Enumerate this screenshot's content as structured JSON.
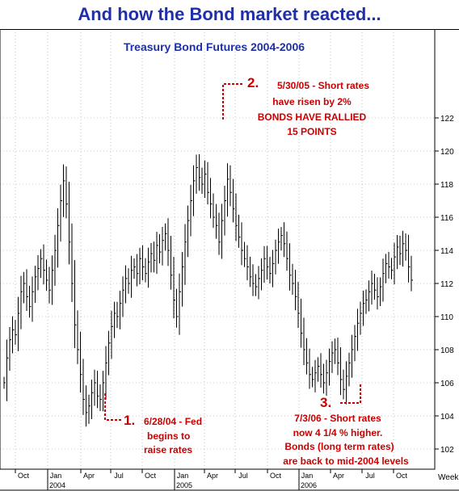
{
  "banner_title": "And how the Bond market reacted...",
  "colors": {
    "title": "#1f2fa8",
    "annotation": "#cc0000",
    "bars": "#000000",
    "grid": "#999999"
  },
  "chart_data": {
    "type": "ohlc",
    "title": "Treasury Bond Futures 2004-2006",
    "xlabel": "Week",
    "ylim": [
      101,
      124
    ],
    "yticks": [
      102,
      104,
      106,
      108,
      110,
      112,
      114,
      116,
      118,
      120,
      122
    ],
    "grid": true,
    "x_ticks": [
      "Oct",
      "Jan",
      "Apr",
      "Jul",
      "Oct",
      "Jan",
      "Apr",
      "Jul",
      "Oct",
      "Jan",
      "Apr",
      "Jul",
      "Oct"
    ],
    "years": [
      "2004",
      "2005",
      "2006"
    ],
    "start_week": "2003-09-01",
    "series_close": [
      106.0,
      107.5,
      108.6,
      109.2,
      108.9,
      110.2,
      111.5,
      112.0,
      111.2,
      110.6,
      111.5,
      112.4,
      112.9,
      113.5,
      112.8,
      112.2,
      111.6,
      112.8,
      114.0,
      115.5,
      117.0,
      118.2,
      116.8,
      114.5,
      112.0,
      109.5,
      108.0,
      106.5,
      105.0,
      104.2,
      104.6,
      105.4,
      106.0,
      105.2,
      105.0,
      106.0,
      107.2,
      108.4,
      109.4,
      110.2,
      110.0,
      110.8,
      111.6,
      112.3,
      112.0,
      112.8,
      113.0,
      112.6,
      113.5,
      113.0,
      112.6,
      113.3,
      113.8,
      113.4,
      114.3,
      113.9,
      114.6,
      115.0,
      114.0,
      112.5,
      111.0,
      110.0,
      111.5,
      113.0,
      114.5,
      115.8,
      117.0,
      118.2,
      119.0,
      118.4,
      118.0,
      118.6,
      117.5,
      116.8,
      116.0,
      115.5,
      114.5,
      115.8,
      117.0,
      118.3,
      117.5,
      116.5,
      115.5,
      114.8,
      114.0,
      113.5,
      113.0,
      112.4,
      112.0,
      111.8,
      112.3,
      112.8,
      113.5,
      113.0,
      112.6,
      113.2,
      114.0,
      114.5,
      114.9,
      114.4,
      113.5,
      112.5,
      112.0,
      111.2,
      110.2,
      109.0,
      108.0,
      107.2,
      106.5,
      106.2,
      106.6,
      107.0,
      106.5,
      106.0,
      106.6,
      107.3,
      107.8,
      108.0,
      107.2,
      106.2,
      105.6,
      106.4,
      107.2,
      108.0,
      108.8,
      109.6,
      110.2,
      110.8,
      111.0,
      111.5,
      112.0,
      111.6,
      111.2,
      111.8,
      112.6,
      113.2,
      113.0,
      112.8,
      113.6,
      114.2,
      113.8,
      114.4,
      114.0,
      113.0,
      112.2
    ],
    "annotations": [
      {
        "number": "1.",
        "lines": [
          "6/28/04 - Fed",
          "begins to",
          "raise rates"
        ]
      },
      {
        "number": "2.",
        "lines": [
          "5/30/05 - Short rates",
          "have risen by 2%",
          "BONDS HAVE RALLIED",
          "15 POINTS"
        ]
      },
      {
        "number": "3.",
        "lines": [
          "7/3/06 - Short rates",
          "now 4 1/4 % higher.",
          "Bonds (long term rates)",
          "are back to mid-2004 levels"
        ]
      }
    ]
  }
}
